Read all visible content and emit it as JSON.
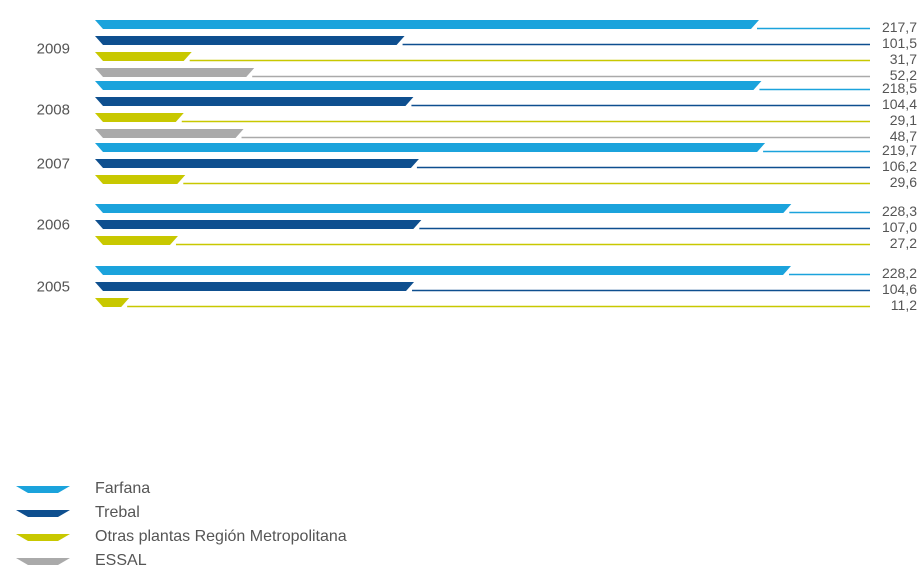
{
  "chart_data": {
    "type": "bar",
    "orientation": "horizontal",
    "categories": [
      "2009",
      "2008",
      "2007",
      "2006",
      "2005"
    ],
    "series": [
      {
        "name": "Farfana",
        "color": "#1ba3dc",
        "values": [
          217.7,
          218.5,
          219.7,
          228.3,
          228.2
        ],
        "labels": [
          "217,7",
          "218,5",
          "219,7",
          "228,3",
          "228,2"
        ]
      },
      {
        "name": "Trebal",
        "color": "#0e4f8f",
        "values": [
          101.5,
          104.4,
          106.2,
          107.0,
          104.6
        ],
        "labels": [
          "101,5",
          "104,4",
          "106,2",
          "107,0",
          "104,6"
        ]
      },
      {
        "name": "Otras plantas Región Metropolitana",
        "color": "#c8c800",
        "values": [
          31.7,
          29.1,
          29.6,
          27.2,
          11.2
        ],
        "labels": [
          "31,7",
          "29,1",
          "29,6",
          "27,2",
          "11,2"
        ]
      },
      {
        "name": "ESSAL",
        "color": "#aaaaaa",
        "values": [
          52.2,
          48.7,
          null,
          null,
          null
        ],
        "labels": [
          "52,2",
          "48,7",
          null,
          null,
          null
        ]
      }
    ],
    "legend_position": "bottom-left",
    "grid": false
  }
}
